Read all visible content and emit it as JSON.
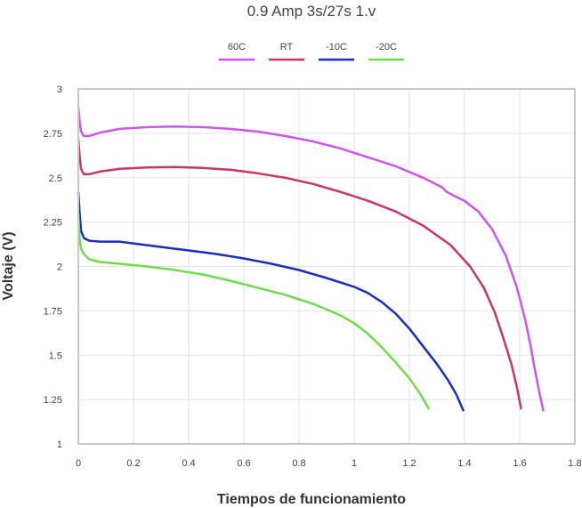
{
  "chart_data": {
    "type": "line",
    "title": "0.9 Amp 3s/27s 1.v",
    "xlabel": "Tiempos de funcionamiento",
    "ylabel": "Voltaje (V)",
    "xlim": [
      0,
      1.8
    ],
    "ylim": [
      1,
      3
    ],
    "x_ticks": [
      0,
      0.2,
      0.4,
      0.6,
      0.8,
      1,
      1.2,
      1.4,
      1.6,
      1.8
    ],
    "x_tick_labels": [
      "0",
      "0.2",
      "0.4",
      "0.6",
      "0.8",
      "1",
      "1.2",
      "1.4",
      "1.6",
      "1.8"
    ],
    "y_ticks": [
      1,
      1.25,
      1.5,
      1.75,
      2,
      2.25,
      2.5,
      2.75,
      3
    ],
    "y_tick_labels": [
      "1",
      "1.25",
      "1.5",
      "1.75",
      "2",
      "2.25",
      "2.5",
      "2.75",
      "3"
    ],
    "grid": true,
    "legend_position": "top-center",
    "series": [
      {
        "name": "60C",
        "color": "#cc55ee",
        "points": [
          [
            0,
            2.9
          ],
          [
            0.005,
            2.82
          ],
          [
            0.01,
            2.76
          ],
          [
            0.02,
            2.735
          ],
          [
            0.04,
            2.735
          ],
          [
            0.08,
            2.755
          ],
          [
            0.15,
            2.775
          ],
          [
            0.25,
            2.785
          ],
          [
            0.35,
            2.788
          ],
          [
            0.45,
            2.785
          ],
          [
            0.55,
            2.775
          ],
          [
            0.65,
            2.76
          ],
          [
            0.75,
            2.735
          ],
          [
            0.85,
            2.705
          ],
          [
            0.95,
            2.665
          ],
          [
            1.05,
            2.615
          ],
          [
            1.15,
            2.565
          ],
          [
            1.25,
            2.5
          ],
          [
            1.32,
            2.445
          ],
          [
            1.335,
            2.42
          ],
          [
            1.36,
            2.4
          ],
          [
            1.4,
            2.37
          ],
          [
            1.45,
            2.31
          ],
          [
            1.5,
            2.21
          ],
          [
            1.55,
            2.06
          ],
          [
            1.59,
            1.88
          ],
          [
            1.62,
            1.7
          ],
          [
            1.64,
            1.55
          ],
          [
            1.655,
            1.42
          ],
          [
            1.67,
            1.3
          ],
          [
            1.685,
            1.19
          ]
        ]
      },
      {
        "name": "RT",
        "color": "#cc3366",
        "points": [
          [
            0,
            2.72
          ],
          [
            0.005,
            2.62
          ],
          [
            0.01,
            2.55
          ],
          [
            0.02,
            2.52
          ],
          [
            0.04,
            2.52
          ],
          [
            0.08,
            2.535
          ],
          [
            0.15,
            2.55
          ],
          [
            0.25,
            2.558
          ],
          [
            0.35,
            2.56
          ],
          [
            0.45,
            2.555
          ],
          [
            0.55,
            2.545
          ],
          [
            0.65,
            2.525
          ],
          [
            0.75,
            2.5
          ],
          [
            0.85,
            2.465
          ],
          [
            0.95,
            2.42
          ],
          [
            1.05,
            2.37
          ],
          [
            1.15,
            2.31
          ],
          [
            1.25,
            2.23
          ],
          [
            1.35,
            2.12
          ],
          [
            1.42,
            2.0
          ],
          [
            1.47,
            1.88
          ],
          [
            1.51,
            1.74
          ],
          [
            1.54,
            1.6
          ],
          [
            1.57,
            1.45
          ],
          [
            1.59,
            1.32
          ],
          [
            1.605,
            1.2
          ]
        ]
      },
      {
        "name": "-10C",
        "color": "#1a2dbf",
        "points": [
          [
            0,
            2.42
          ],
          [
            0.005,
            2.3
          ],
          [
            0.01,
            2.2
          ],
          [
            0.02,
            2.16
          ],
          [
            0.04,
            2.145
          ],
          [
            0.08,
            2.14
          ],
          [
            0.12,
            2.14
          ],
          [
            0.15,
            2.14
          ],
          [
            0.2,
            2.13
          ],
          [
            0.3,
            2.11
          ],
          [
            0.4,
            2.09
          ],
          [
            0.5,
            2.07
          ],
          [
            0.6,
            2.045
          ],
          [
            0.7,
            2.015
          ],
          [
            0.8,
            1.98
          ],
          [
            0.9,
            1.935
          ],
          [
            1.0,
            1.885
          ],
          [
            1.05,
            1.85
          ],
          [
            1.1,
            1.8
          ],
          [
            1.15,
            1.735
          ],
          [
            1.2,
            1.65
          ],
          [
            1.25,
            1.55
          ],
          [
            1.3,
            1.45
          ],
          [
            1.34,
            1.36
          ],
          [
            1.37,
            1.28
          ],
          [
            1.395,
            1.19
          ]
        ]
      },
      {
        "name": "-20C",
        "color": "#6edc4a",
        "points": [
          [
            0,
            2.3
          ],
          [
            0.005,
            2.15
          ],
          [
            0.01,
            2.1
          ],
          [
            0.02,
            2.07
          ],
          [
            0.04,
            2.04
          ],
          [
            0.08,
            2.025
          ],
          [
            0.15,
            2.015
          ],
          [
            0.25,
            2.0
          ],
          [
            0.35,
            1.98
          ],
          [
            0.45,
            1.955
          ],
          [
            0.55,
            1.92
          ],
          [
            0.65,
            1.88
          ],
          [
            0.75,
            1.84
          ],
          [
            0.85,
            1.79
          ],
          [
            0.95,
            1.725
          ],
          [
            1.0,
            1.68
          ],
          [
            1.05,
            1.62
          ],
          [
            1.1,
            1.545
          ],
          [
            1.15,
            1.46
          ],
          [
            1.2,
            1.37
          ],
          [
            1.24,
            1.28
          ],
          [
            1.27,
            1.2
          ]
        ]
      }
    ]
  }
}
